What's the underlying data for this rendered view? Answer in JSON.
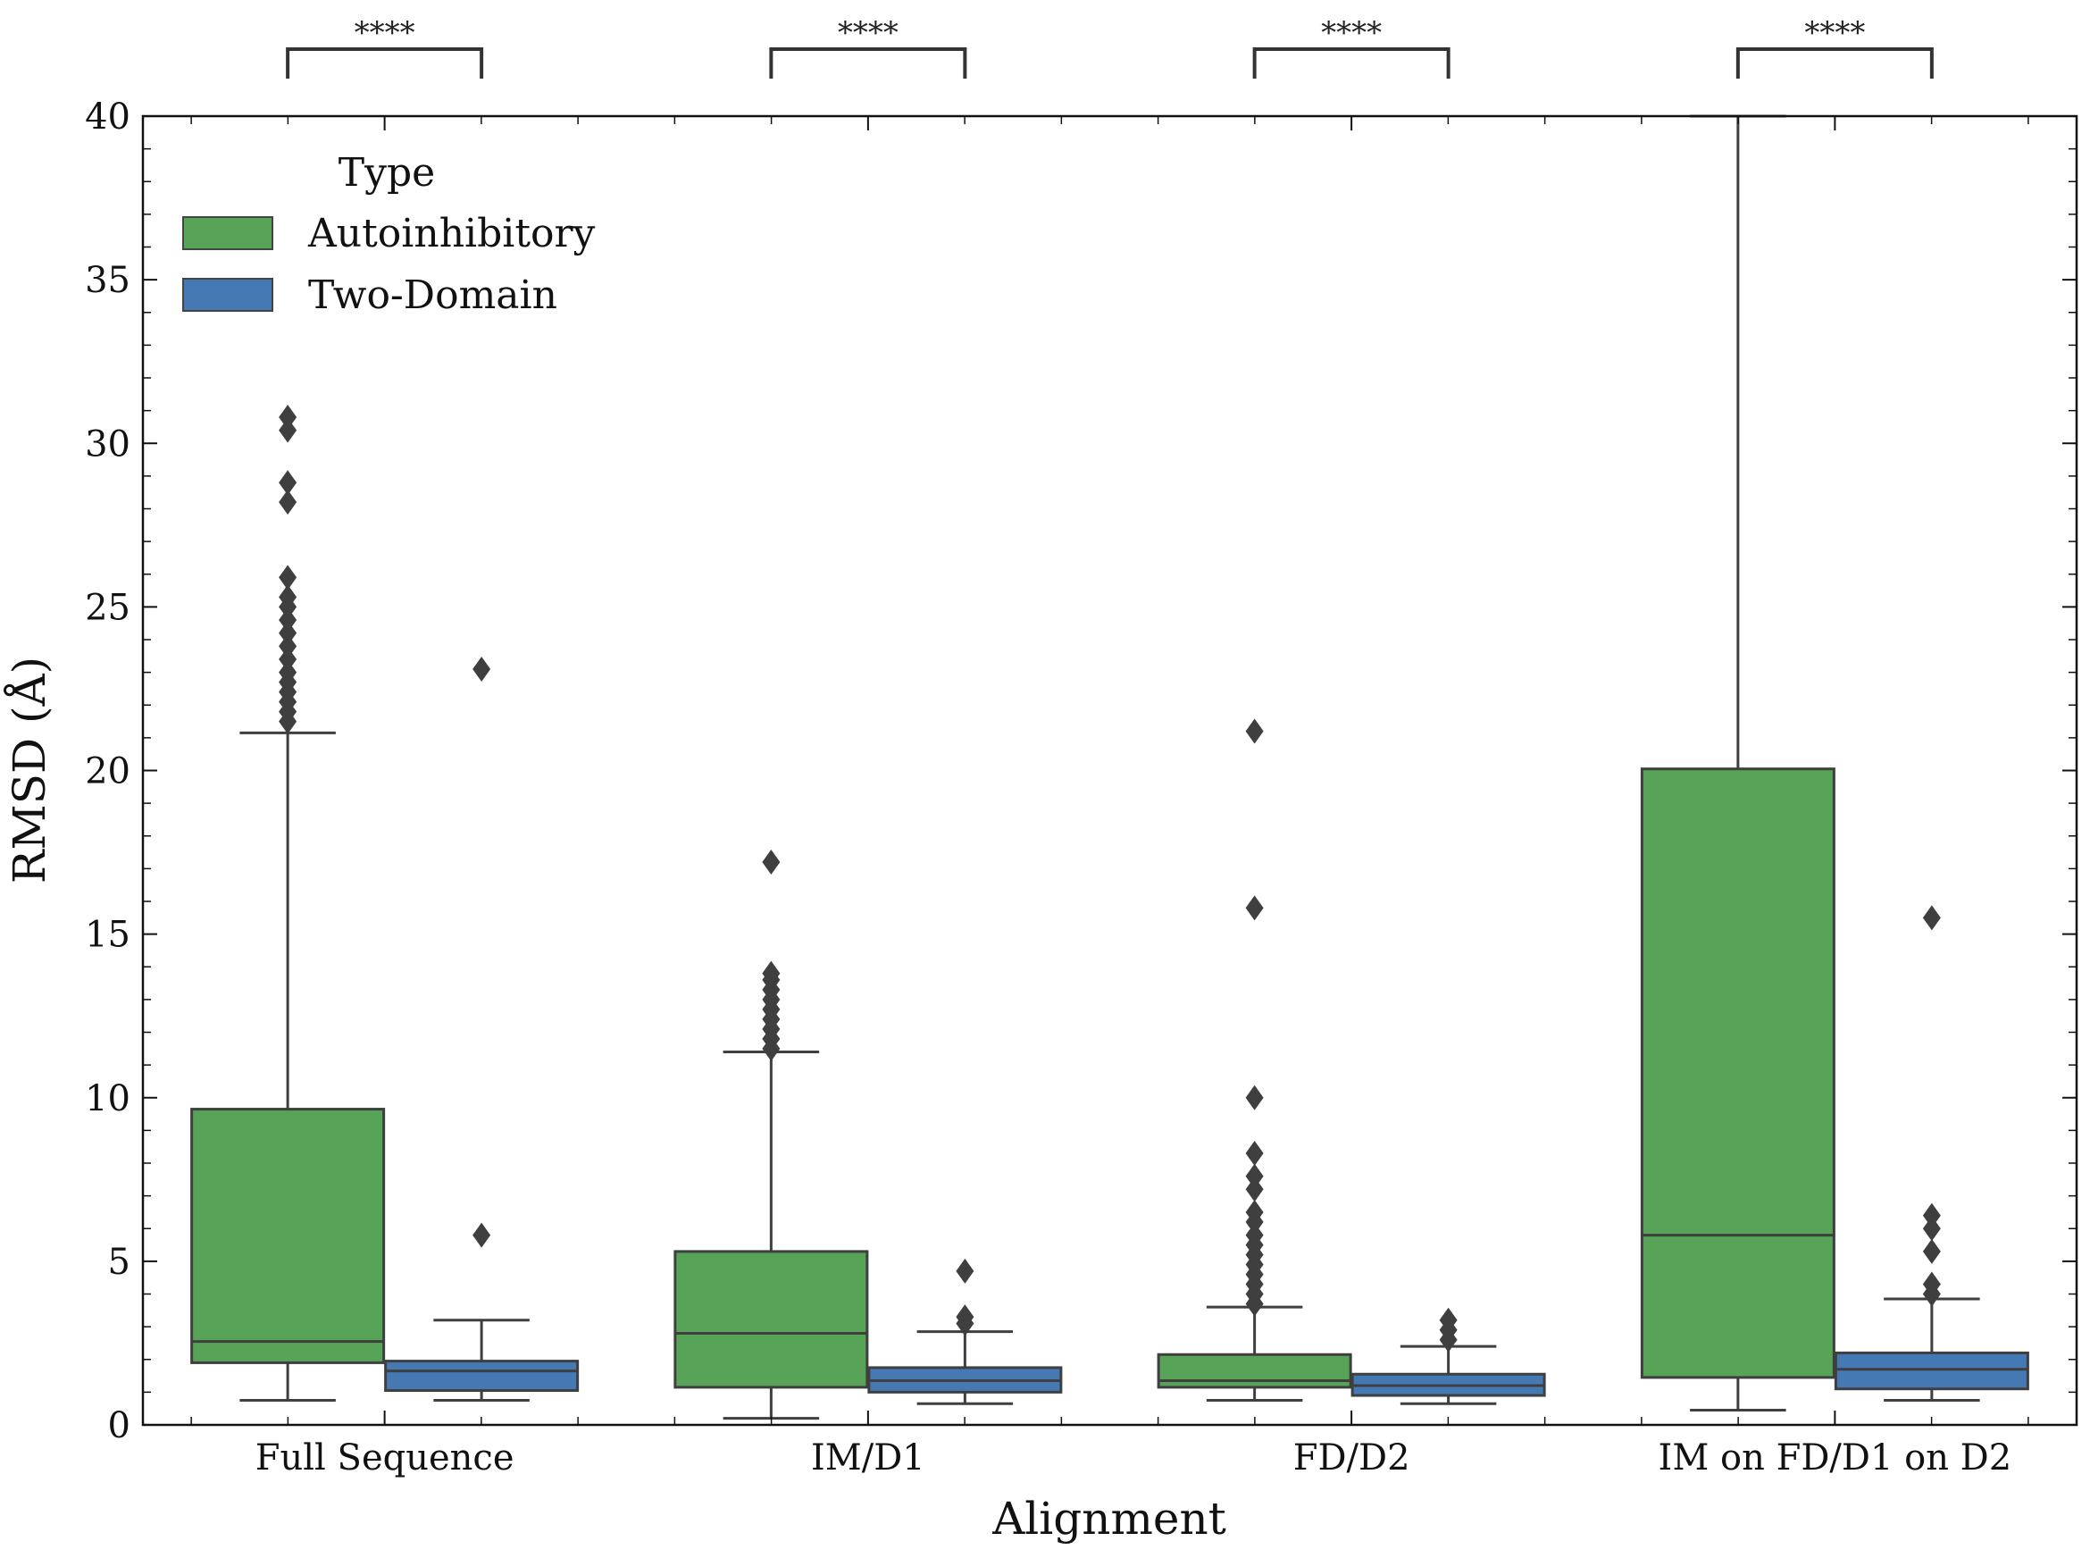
{
  "chart_data": {
    "type": "box",
    "xlabel": "Alignment",
    "ylabel": "RMSD (Å)",
    "ylim": [
      0,
      40
    ],
    "yticks": [
      0,
      5,
      10,
      15,
      20,
      25,
      30,
      35,
      40
    ],
    "categories": [
      "Full Sequence",
      "IM/D1",
      "FD/D2",
      "IM on FD/D1 on D2"
    ],
    "legend": {
      "title": "Type",
      "placement": "top-left",
      "entries": [
        "Autoinhibitory",
        "Two-Domain"
      ]
    },
    "significance": [
      "****",
      "****",
      "****",
      "****"
    ],
    "series": [
      {
        "name": "Autoinhibitory",
        "color": "#57a357",
        "boxes": [
          {
            "whisker_low": 0.75,
            "q1": 1.9,
            "median": 2.55,
            "q3": 9.65,
            "whisker_high": 21.15,
            "outliers": [
              21.5,
              21.8,
              22.1,
              22.4,
              22.7,
              23.0,
              23.4,
              23.8,
              24.2,
              24.6,
              25.0,
              25.3,
              25.9,
              28.2,
              28.8,
              30.4,
              30.8
            ]
          },
          {
            "whisker_low": 0.2,
            "q1": 1.15,
            "median": 2.8,
            "q3": 5.3,
            "whisker_high": 11.4,
            "outliers": [
              11.5,
              11.8,
              12.1,
              12.4,
              12.7,
              13.0,
              13.3,
              13.6,
              13.8,
              17.2
            ]
          },
          {
            "whisker_low": 0.75,
            "q1": 1.15,
            "median": 1.35,
            "q3": 2.15,
            "whisker_high": 3.6,
            "outliers": [
              3.7,
              4.0,
              4.3,
              4.6,
              4.9,
              5.2,
              5.5,
              5.8,
              6.2,
              6.5,
              7.2,
              7.6,
              8.3,
              10.0,
              15.8,
              21.2
            ]
          },
          {
            "whisker_low": 0.45,
            "q1": 1.45,
            "median": 5.8,
            "q3": 20.05,
            "whisker_high": 40,
            "outliers": []
          }
        ]
      },
      {
        "name": "Two-Domain",
        "color": "#4479b4",
        "boxes": [
          {
            "whisker_low": 0.75,
            "q1": 1.05,
            "median": 1.65,
            "q3": 1.95,
            "whisker_high": 3.2,
            "outliers": [
              5.8,
              23.1
            ]
          },
          {
            "whisker_low": 0.65,
            "q1": 1.0,
            "median": 1.35,
            "q3": 1.75,
            "whisker_high": 2.85,
            "outliers": [
              3.1,
              3.3,
              4.7
            ]
          },
          {
            "whisker_low": 0.65,
            "q1": 0.9,
            "median": 1.2,
            "q3": 1.55,
            "whisker_high": 2.4,
            "outliers": [
              2.6,
              2.9,
              3.2
            ]
          },
          {
            "whisker_low": 0.75,
            "q1": 1.1,
            "median": 1.7,
            "q3": 2.2,
            "whisker_high": 3.85,
            "outliers": [
              4.0,
              4.3,
              5.3,
              6.0,
              6.4,
              15.5
            ]
          }
        ]
      }
    ]
  }
}
